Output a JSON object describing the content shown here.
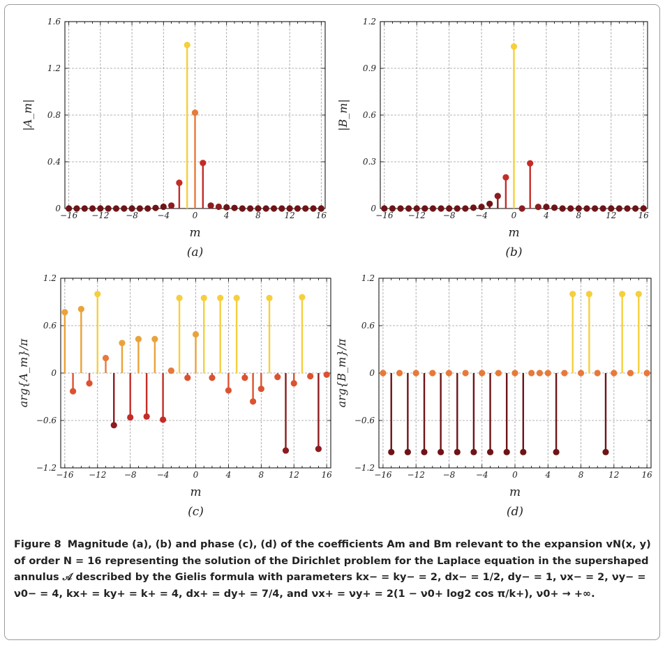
{
  "figure_label": "Figure 8",
  "caption_text": "Magnitude (a), (b) and phase (c), (d) of the coefficients Am and Bm relevant to the expansion vN(x, y) of order N = 16 representing the solution of the Dirichlet problem for the Laplace equation in the supershaped annulus 𝒜 described by the Gielis formula with parameters kx− = ky− = 2, dx− = 1/2, dy− = 1, νx− = 2, νy− = ν0− = 4, kx+ = ky+ = k+ = 4, dx+ = dy+ = 7/4, and νx+ = νy+ = 2(1 − ν0+ log2 cos π/k+), ν0+ → +∞.",
  "colors": {
    "grid": "#9a9a9a",
    "axis": "#000000",
    "stems": {
      "yellow": "#f5cf3d",
      "light_orange": "#eaa23a",
      "orange": "#e7793a",
      "red_orange": "#dc5230",
      "red": "#c42c27",
      "dark_red": "#8c1c1f",
      "darkest": "#6e1417"
    }
  },
  "chart_data": [
    {
      "panel": "(a)",
      "type": "stem",
      "xlabel": "m",
      "ylabel": "|A_m|",
      "xlim": [
        -16.5,
        16.5
      ],
      "ylim": [
        0,
        1.6
      ],
      "xticks": [
        -16,
        -12,
        -8,
        -4,
        0,
        4,
        8,
        12,
        16
      ],
      "xtick_labels": [
        "−16",
        "−12",
        "−8",
        "−4",
        "0",
        "4",
        "8",
        "12",
        "16"
      ],
      "yticks": [
        0,
        0.4,
        0.8,
        1.2,
        1.6
      ],
      "ytick_labels": [
        "0",
        "0.4",
        "0.8",
        "1.2",
        "1.6"
      ],
      "x": [
        -16,
        -15,
        -14,
        -13,
        -12,
        -11,
        -10,
        -9,
        -8,
        -7,
        -6,
        -5,
        -4,
        -3,
        -2,
        -1,
        0,
        1,
        2,
        3,
        4,
        5,
        6,
        7,
        8,
        9,
        10,
        11,
        12,
        13,
        14,
        15,
        16
      ],
      "values": [
        0,
        0,
        0,
        0,
        0,
        0,
        0,
        0,
        0,
        0,
        0,
        0.005,
        0.015,
        0.025,
        0.22,
        1.4,
        0.82,
        0.39,
        0.025,
        0.015,
        0.01,
        0.005,
        0,
        0,
        0,
        0,
        0,
        0,
        0,
        0,
        0,
        0,
        0
      ],
      "color_keys": [
        "darkest",
        "darkest",
        "darkest",
        "darkest",
        "darkest",
        "darkest",
        "darkest",
        "darkest",
        "darkest",
        "darkest",
        "darkest",
        "darkest",
        "darkest",
        "dark_red",
        "red",
        "yellow",
        "orange",
        "red",
        "dark_red",
        "dark_red",
        "darkest",
        "darkest",
        "darkest",
        "darkest",
        "darkest",
        "darkest",
        "darkest",
        "darkest",
        "darkest",
        "darkest",
        "darkest",
        "darkest",
        "darkest"
      ]
    },
    {
      "panel": "(b)",
      "type": "stem",
      "xlabel": "m",
      "ylabel": "|B_m|",
      "xlim": [
        -16.5,
        16.5
      ],
      "ylim": [
        0,
        1.2
      ],
      "xticks": [
        -16,
        -12,
        -8,
        -4,
        0,
        4,
        8,
        12,
        16
      ],
      "xtick_labels": [
        "−16",
        "−12",
        "−8",
        "−4",
        "0",
        "4",
        "8",
        "12",
        "16"
      ],
      "yticks": [
        0,
        0.3,
        0.6,
        0.9,
        1.2
      ],
      "ytick_labels": [
        "0",
        "0.3",
        "0.6",
        "0.9",
        "1.2"
      ],
      "x": [
        -16,
        -15,
        -14,
        -13,
        -12,
        -11,
        -10,
        -9,
        -8,
        -7,
        -6,
        -5,
        -4,
        -3,
        -2,
        -1,
        0,
        1,
        2,
        3,
        4,
        5,
        6,
        7,
        8,
        9,
        10,
        11,
        12,
        13,
        14,
        15,
        16
      ],
      "values": [
        0,
        0,
        0,
        0,
        0,
        0,
        0,
        0,
        0,
        0,
        0,
        0.005,
        0.01,
        0.03,
        0.08,
        0.2,
        1.04,
        0,
        0.29,
        0.01,
        0.01,
        0.005,
        0,
        0,
        0,
        0,
        0,
        0,
        0,
        0,
        0,
        0,
        0
      ],
      "color_keys": [
        "darkest",
        "darkest",
        "darkest",
        "darkest",
        "darkest",
        "darkest",
        "darkest",
        "darkest",
        "darkest",
        "darkest",
        "darkest",
        "darkest",
        "darkest",
        "darkest",
        "dark_red",
        "red",
        "yellow",
        "dark_red",
        "red",
        "dark_red",
        "darkest",
        "darkest",
        "darkest",
        "darkest",
        "darkest",
        "darkest",
        "darkest",
        "darkest",
        "darkest",
        "darkest",
        "darkest",
        "darkest",
        "darkest"
      ]
    },
    {
      "panel": "(c)",
      "type": "stem",
      "xlabel": "m",
      "ylabel": "arg{A_m}/π",
      "xlim": [
        -16.5,
        16.5
      ],
      "ylim": [
        -1.2,
        1.2
      ],
      "xticks": [
        -16,
        -12,
        -8,
        -4,
        0,
        4,
        8,
        12,
        16
      ],
      "xtick_labels": [
        "−16",
        "−12",
        "−8",
        "−4",
        "0",
        "4",
        "8",
        "12",
        "16"
      ],
      "yticks": [
        -1.2,
        -0.6,
        0,
        0.6,
        1.2
      ],
      "ytick_labels": [
        "−1.2",
        "−0.6",
        "0",
        "0.6",
        "1.2"
      ],
      "x": [
        -16,
        -15,
        -14,
        -13,
        -12,
        -11,
        -10,
        -9,
        -8,
        -7,
        -6,
        -5,
        -4,
        -3,
        -2,
        -1,
        0,
        1,
        2,
        3,
        4,
        5,
        6,
        7,
        8,
        9,
        10,
        11,
        12,
        13,
        14,
        15,
        16
      ],
      "values": [
        0.77,
        -0.23,
        0.81,
        -0.13,
        1.0,
        0.19,
        -0.66,
        0.38,
        -0.56,
        0.43,
        -0.55,
        0.43,
        -0.59,
        0.03,
        0.95,
        -0.06,
        0.49,
        0.95,
        -0.06,
        0.95,
        -0.22,
        0.95,
        -0.06,
        -0.36,
        -0.2,
        0.95,
        -0.05,
        -0.98,
        -0.13,
        0.96,
        -0.04,
        -0.96,
        -0.02
      ],
      "color_keys": [
        "light_orange",
        "red_orange",
        "light_orange",
        "red_orange",
        "yellow",
        "orange",
        "dark_red",
        "light_orange",
        "red",
        "light_orange",
        "red",
        "light_orange",
        "red",
        "orange",
        "yellow",
        "red_orange",
        "light_orange",
        "yellow",
        "red_orange",
        "yellow",
        "red_orange",
        "yellow",
        "red_orange",
        "red_orange",
        "red_orange",
        "yellow",
        "red_orange",
        "dark_red",
        "red_orange",
        "yellow",
        "red_orange",
        "dark_red",
        "red_orange"
      ]
    },
    {
      "panel": "(d)",
      "type": "stem",
      "xlabel": "m",
      "ylabel": "arg{B_m}/π",
      "xlim": [
        -16.5,
        16.5
      ],
      "ylim": [
        -1.2,
        1.2
      ],
      "xticks": [
        -16,
        -12,
        -8,
        -4,
        0,
        4,
        8,
        12,
        16
      ],
      "xtick_labels": [
        "−16",
        "−12",
        "−8",
        "−4",
        "0",
        "4",
        "8",
        "12",
        "16"
      ],
      "yticks": [
        -1.2,
        -0.6,
        0,
        0.6,
        1.2
      ],
      "ytick_labels": [
        "−1.2",
        "−0.6",
        "0",
        "0.6",
        "1.2"
      ],
      "x": [
        -16,
        -15,
        -14,
        -13,
        -12,
        -11,
        -10,
        -9,
        -8,
        -7,
        -6,
        -5,
        -4,
        -3,
        -2,
        -1,
        0,
        1,
        2,
        3,
        4,
        5,
        6,
        7,
        8,
        9,
        10,
        11,
        12,
        13,
        14,
        15,
        16
      ],
      "values": [
        0,
        -1.0,
        0,
        -1.0,
        0,
        -1.0,
        0,
        -1.0,
        0,
        -1.0,
        0,
        -1.0,
        0,
        -1.0,
        0,
        -1.0,
        0,
        -1.0,
        0,
        0,
        0,
        -1.0,
        0,
        1.0,
        0,
        1.0,
        0,
        -1.0,
        0,
        1.0,
        0,
        1.0,
        0
      ],
      "color_keys": [
        "orange",
        "darkest",
        "orange",
        "darkest",
        "orange",
        "darkest",
        "orange",
        "darkest",
        "orange",
        "darkest",
        "orange",
        "darkest",
        "orange",
        "darkest",
        "orange",
        "darkest",
        "orange",
        "darkest",
        "orange",
        "orange",
        "orange",
        "darkest",
        "orange",
        "yellow",
        "orange",
        "yellow",
        "orange",
        "darkest",
        "orange",
        "yellow",
        "orange",
        "yellow",
        "orange"
      ]
    }
  ]
}
